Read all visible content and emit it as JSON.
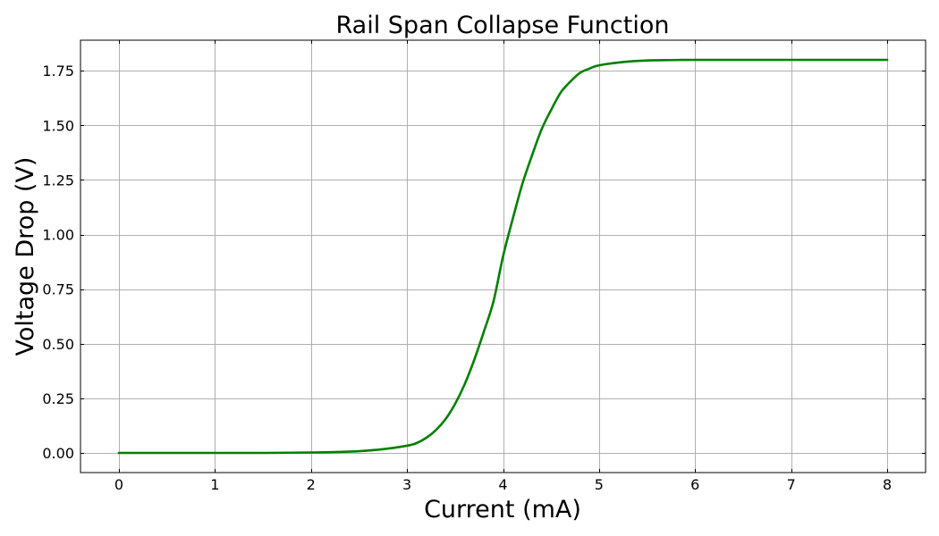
{
  "chart_data": {
    "type": "line",
    "title": "Rail Span Collapse Function",
    "xlabel": "Current (mA)",
    "ylabel": "Voltage Drop (V)",
    "xlim": [
      -0.4,
      8.4
    ],
    "ylim": [
      -0.09,
      1.89
    ],
    "xticks": [
      0,
      1,
      2,
      3,
      4,
      5,
      6,
      7,
      8
    ],
    "xtick_labels": [
      "0",
      "1",
      "2",
      "3",
      "4",
      "5",
      "6",
      "7",
      "8"
    ],
    "yticks": [
      0,
      0.25,
      0.5,
      0.75,
      1.0,
      1.25,
      1.5,
      1.75
    ],
    "ytick_labels": [
      "0.00",
      "0.25",
      "0.50",
      "0.75",
      "1.00",
      "1.25",
      "1.50",
      "1.75"
    ],
    "grid": true,
    "legend": "none",
    "series": [
      {
        "color": "#008000",
        "x": [
          0.0,
          0.5,
          1.0,
          1.5,
          2.0,
          2.25,
          2.5,
          2.75,
          3.0,
          3.1,
          3.2,
          3.3,
          3.4,
          3.5,
          3.6,
          3.7,
          3.8,
          3.9,
          4.0,
          4.1,
          4.2,
          4.3,
          4.4,
          4.5,
          4.6,
          4.7,
          4.8,
          4.9,
          5.0,
          5.25,
          5.5,
          5.75,
          6.0,
          6.5,
          7.0,
          7.5,
          8.0
        ],
        "y": [
          0.0,
          0.0,
          0.0,
          0.0,
          0.002,
          0.004,
          0.008,
          0.017,
          0.033,
          0.045,
          0.069,
          0.104,
          0.154,
          0.224,
          0.314,
          0.426,
          0.555,
          0.693,
          0.9,
          1.07,
          1.23,
          1.36,
          1.48,
          1.57,
          1.65,
          1.7,
          1.74,
          1.76,
          1.775,
          1.79,
          1.797,
          1.799,
          1.8,
          1.8,
          1.8,
          1.8,
          1.8
        ]
      }
    ]
  }
}
